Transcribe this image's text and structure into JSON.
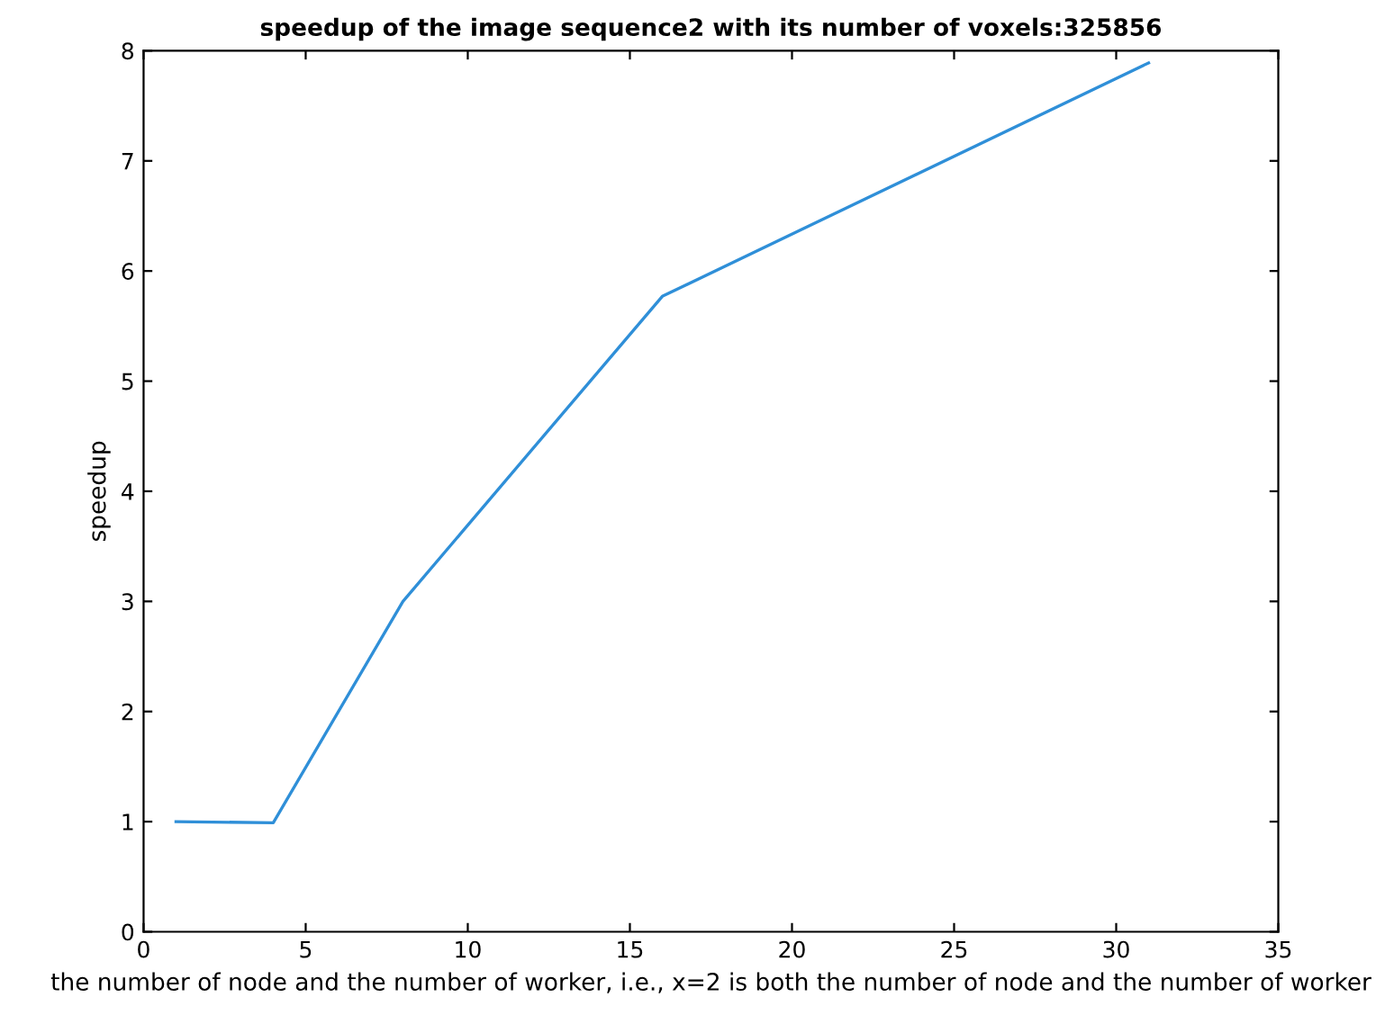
{
  "chart_data": {
    "type": "line",
    "title": "speedup of the image sequence2 with its number of voxels:325856",
    "xlabel": "the number of node and the number of worker, i.e., x=2 is both the number of node and the number of worker",
    "ylabel": "speedup",
    "x": [
      1,
      4,
      8,
      16,
      31
    ],
    "series": [
      {
        "color": "#2f8fd8",
        "values": [
          1,
          0.99,
          3,
          5.77,
          7.89
        ]
      }
    ],
    "xlim": [
      0,
      35
    ],
    "xticks": [
      0,
      5,
      10,
      15,
      20,
      25,
      30,
      35
    ],
    "ylim": [
      0,
      8
    ],
    "yticks": [
      0,
      1,
      2,
      3,
      4,
      5,
      6,
      7,
      8
    ],
    "grid": false,
    "legend": false
  }
}
